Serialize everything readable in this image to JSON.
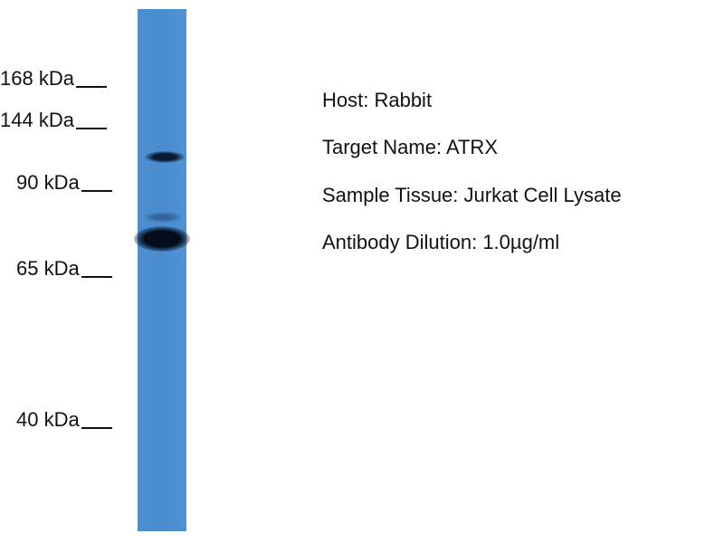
{
  "markers": [
    "168 kDa",
    "144 kDa",
    "90 kDa",
    "65 kDa",
    "40 kDa"
  ],
  "info": {
    "host": "Host: Rabbit",
    "target": "Target Name: ATRX",
    "tissue": "Sample Tissue: Jurkat Cell Lysate",
    "dilution": "Antibody Dilution: 1.0µg/ml"
  },
  "colors": {
    "membrane": "#4a8dcf",
    "band": "#0a1a33"
  }
}
